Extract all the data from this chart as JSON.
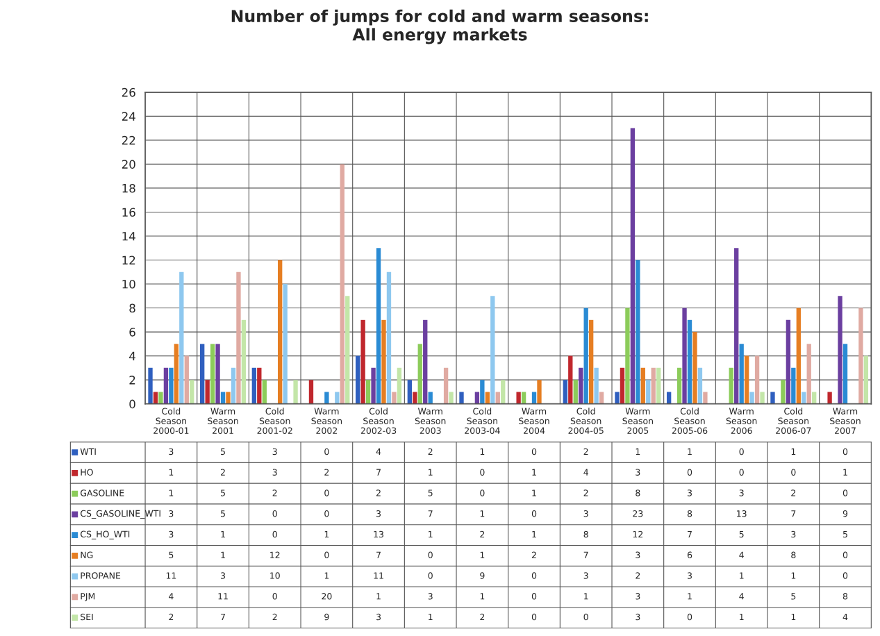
{
  "chart_data": {
    "type": "bar",
    "title": "Number of jumps for cold and warm seasons:\nAll energy markets",
    "categories": [
      "Cold Season 2000-01",
      "Warm Season 2001",
      "Cold Season 2001-02",
      "Warm Season 2002",
      "Cold Season 2002-03",
      "Warm Season 2003",
      "Cold Season 2003-04",
      "Warm Season 2004",
      "Cold Season 2004-05",
      "Warm Season 2005",
      "Cold Season 2005-06",
      "Warm Season 2006",
      "Cold Season 2006-07",
      "Warm Season 2007"
    ],
    "series": [
      {
        "name": "WTI",
        "color": "#2f5fbf",
        "values": [
          3,
          5,
          3,
          0,
          4,
          2,
          1,
          0,
          2,
          1,
          1,
          0,
          1,
          0
        ]
      },
      {
        "name": "HO",
        "color": "#c0272d",
        "values": [
          1,
          2,
          3,
          2,
          7,
          1,
          0,
          1,
          4,
          3,
          0,
          0,
          0,
          1
        ]
      },
      {
        "name": "GASOLINE",
        "color": "#8ccc5a",
        "values": [
          1,
          5,
          2,
          0,
          2,
          5,
          0,
          1,
          2,
          8,
          3,
          3,
          2,
          0
        ]
      },
      {
        "name": "CS_GASOLINE_WTI",
        "color": "#6b3fa0",
        "values": [
          3,
          5,
          0,
          0,
          3,
          7,
          1,
          0,
          3,
          23,
          8,
          13,
          7,
          9
        ]
      },
      {
        "name": "CS_HO_WTI",
        "color": "#2a8bd4",
        "values": [
          3,
          1,
          0,
          1,
          13,
          1,
          2,
          1,
          8,
          12,
          7,
          5,
          3,
          5
        ]
      },
      {
        "name": "NG",
        "color": "#e67e22",
        "values": [
          5,
          1,
          12,
          0,
          7,
          0,
          1,
          2,
          7,
          3,
          6,
          4,
          8,
          0
        ]
      },
      {
        "name": "PROPANE",
        "color": "#8ec8ef",
        "values": [
          11,
          3,
          10,
          1,
          11,
          0,
          9,
          0,
          3,
          2,
          3,
          1,
          1,
          0
        ]
      },
      {
        "name": "PJM",
        "color": "#e0aaa2",
        "values": [
          4,
          11,
          0,
          20,
          1,
          3,
          1,
          0,
          1,
          3,
          1,
          4,
          5,
          8
        ]
      },
      {
        "name": "SEI",
        "color": "#c3e6a8",
        "values": [
          2,
          7,
          2,
          9,
          3,
          1,
          2,
          0,
          0,
          3,
          0,
          1,
          1,
          4
        ]
      }
    ],
    "ylim": [
      0,
      26
    ],
    "yticks": [
      0,
      2,
      4,
      6,
      8,
      10,
      12,
      14,
      16,
      18,
      20,
      22,
      24,
      26
    ],
    "grid": true,
    "legend": "bottom",
    "data_labels": true
  }
}
